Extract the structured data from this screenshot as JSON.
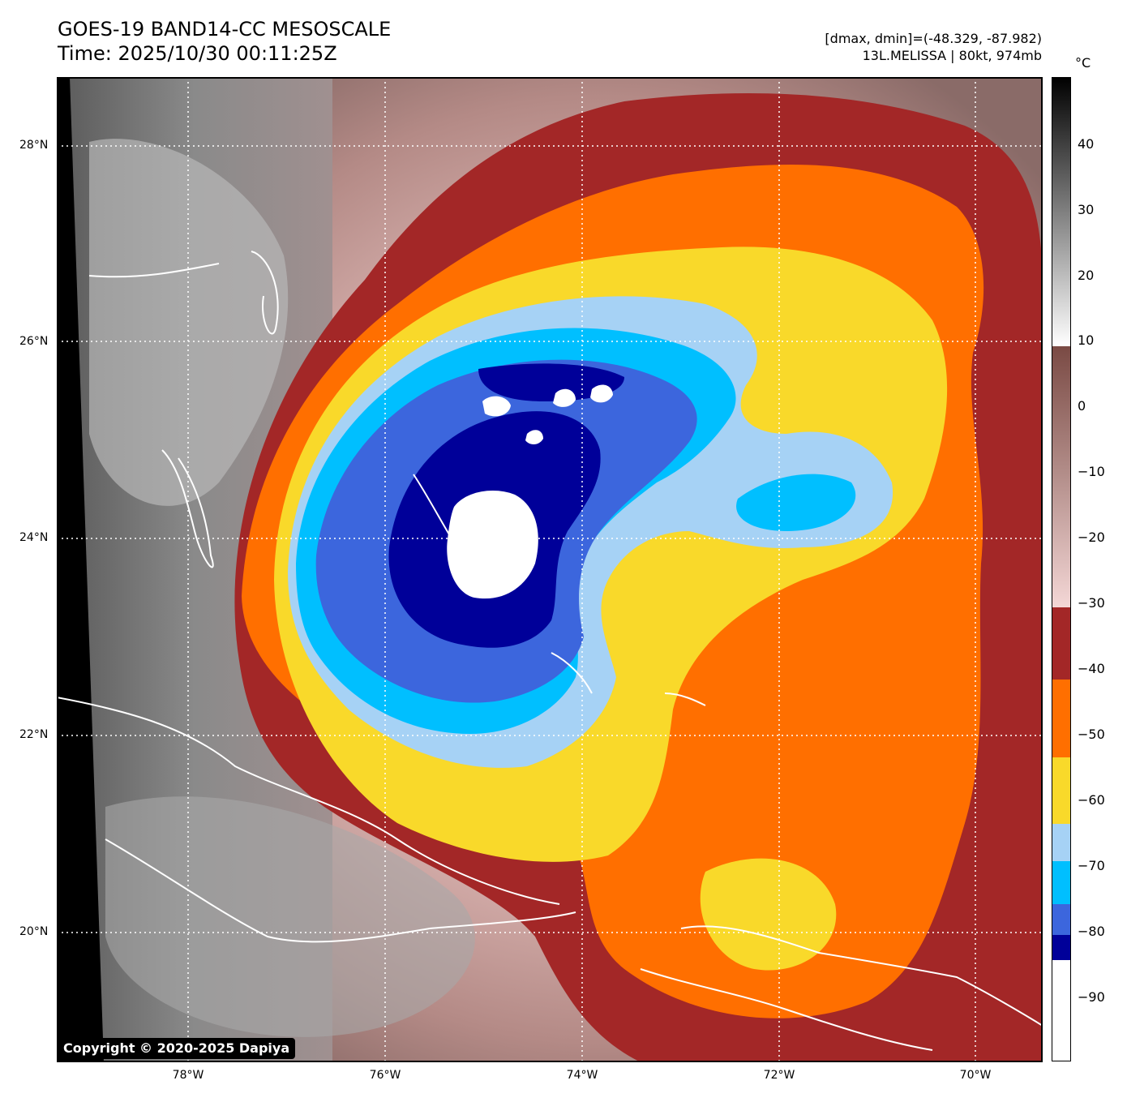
{
  "header": {
    "title": "GOES-19 BAND14-CC MESOSCALE",
    "time": "Time: 2025/10/30 00:11:25Z",
    "range": "[dmax, dmin]=(-48.329, -87.982)",
    "storm": "13L.MELISSA | 80kt, 974mb"
  },
  "colorbar": {
    "unit": "°C",
    "ticks": [
      "40",
      "30",
      "20",
      "10",
      "0",
      "−10",
      "−20",
      "−30",
      "−40",
      "−50",
      "−60",
      "−70",
      "−80",
      "−90"
    ],
    "palette": {
      "above_10": [
        "#000000",
        "#ffffff"
      ],
      "10_to_-30": [
        "#7a4a44",
        "#f4d7d6"
      ],
      "-30_to_-40": "#a32727",
      "-40_to_-50": "#ff6f00",
      "-50_to_-60": "#f9d92a",
      "-60_to_-70": "#a6d2f5",
      "-70_to_-80": "#00bfff",
      "-80_to_-90": "#3c66dd",
      "-90_band": "#000099",
      "below_-90": "#ffffff"
    }
  },
  "axes": {
    "lat_labels": [
      "28°N",
      "26°N",
      "24°N",
      "22°N",
      "20°N"
    ],
    "lon_labels": [
      "78°W",
      "76°W",
      "74°W",
      "72°W",
      "70°W"
    ]
  },
  "copyright": "Copyright © 2020-2025 Dapiya"
}
